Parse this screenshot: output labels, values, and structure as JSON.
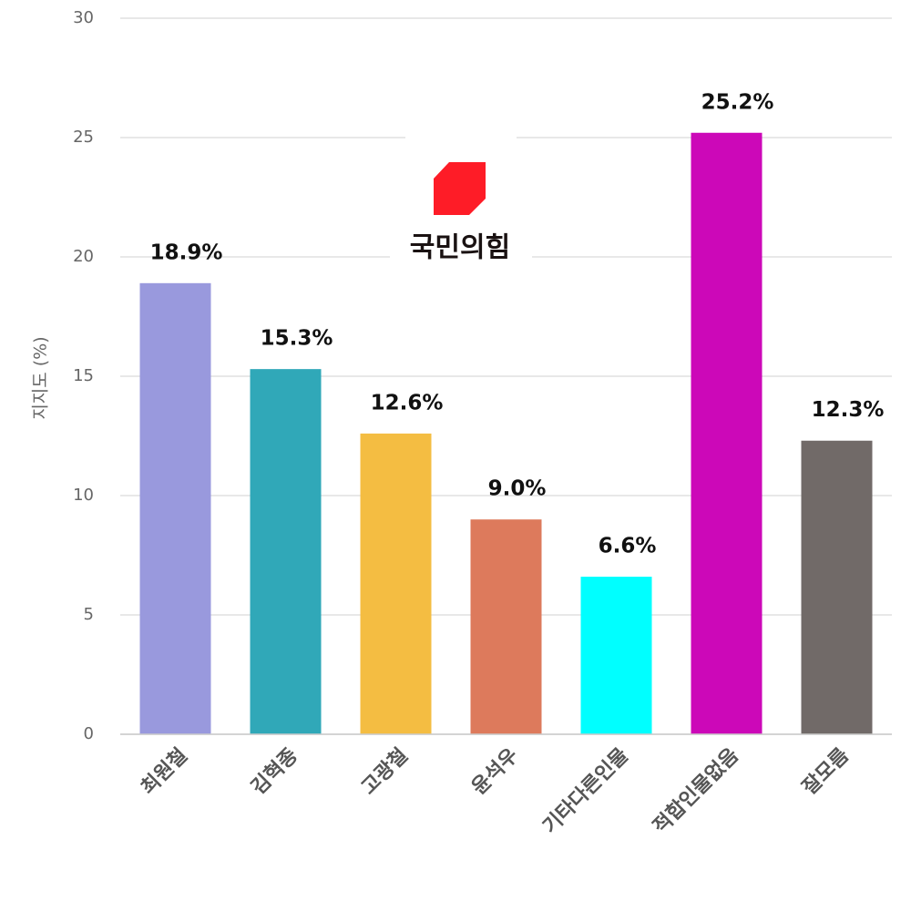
{
  "chart_data": {
    "type": "bar",
    "logo_text": "국민의힘",
    "y_label": "지지도 (%)",
    "categories": [
      "최원철",
      "김혁종",
      "고광철",
      "윤석우",
      "기타다른인물",
      "적합인물없음",
      "잘모름"
    ],
    "values": [
      18.9,
      15.3,
      12.6,
      9.0,
      6.6,
      25.2,
      12.3
    ],
    "value_labels": [
      "18.9%",
      "15.3%",
      "12.6%",
      "9.0%",
      "6.6%",
      "25.2%",
      "12.3%"
    ],
    "colors": [
      "#9999dd",
      "#30a8b8",
      "#f4bd42",
      "#dd7a5c",
      "#00ffff",
      "#cc08b8",
      "#716a68"
    ],
    "ylim": [
      0,
      30
    ],
    "yticks": [
      0,
      5,
      10,
      15,
      20,
      25,
      30
    ],
    "grid": true
  }
}
